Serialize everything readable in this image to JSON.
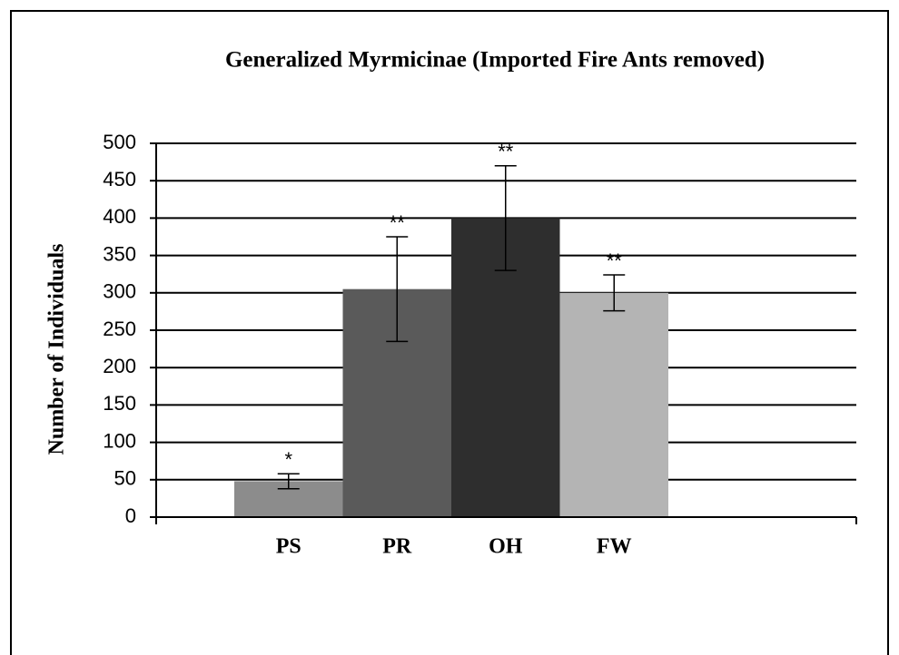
{
  "chart_data": {
    "type": "bar",
    "title": "Generalized  Myrmicinae  (Imported Fire Ants removed)",
    "y_label": "Number of Individuals",
    "categories": [
      "PS",
      "PR",
      "OH",
      "FW"
    ],
    "values": [
      48,
      305,
      400,
      300
    ],
    "errors": [
      10,
      70,
      70,
      24
    ],
    "significance": [
      "*",
      "**",
      "**",
      "**"
    ],
    "colors": [
      "#8c8c8c",
      "#5a5a5a",
      "#2e2e2e",
      "#b4b4b4"
    ],
    "ylim": [
      0,
      500
    ],
    "yticks": [
      0,
      50,
      100,
      150,
      200,
      250,
      300,
      350,
      400,
      450,
      500
    ],
    "grid": true
  }
}
